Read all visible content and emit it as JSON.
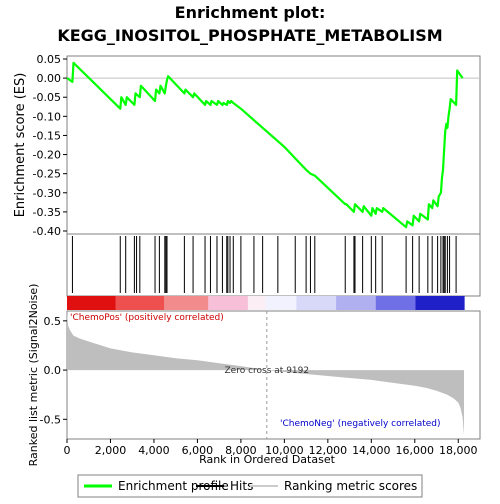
{
  "chart_data": {
    "type": "line",
    "title_line1": "Enrichment plot:",
    "title_line2": "KEGG_INOSITOL_PHOSPHATE_METABOLISM",
    "es_panel": {
      "ylabel": "Enrichment score (ES)",
      "ylim": [
        -0.4,
        0.05
      ],
      "yticks": [
        "0.05",
        "0.00",
        "-0.05",
        "-0.10",
        "-0.15",
        "-0.20",
        "-0.25",
        "-0.30",
        "-0.35",
        "-0.40"
      ],
      "ytick_values": [
        0.05,
        0.0,
        -0.05,
        -0.1,
        -0.15,
        -0.2,
        -0.25,
        -0.3,
        -0.35,
        -0.4
      ],
      "line_color": "#00ff00",
      "series": [
        {
          "name": "Enrichment profile",
          "x": [
            0,
            250,
            300,
            2450,
            2500,
            2700,
            2750,
            3100,
            3150,
            3350,
            3400,
            4050,
            4100,
            4250,
            4300,
            4500,
            4550,
            4600,
            4650,
            5400,
            5450,
            5800,
            5850,
            6350,
            6400,
            6600,
            6650,
            6900,
            6950,
            7150,
            7200,
            7350,
            7400,
            7500,
            7550,
            7650,
            8000,
            9000,
            10000,
            10500,
            11000,
            11200,
            11400,
            12800,
            12850,
            13200,
            13250,
            13600,
            13650,
            14000,
            14050,
            14200,
            14250,
            14500,
            14550,
            15600,
            15650,
            15900,
            15950,
            16200,
            16250,
            16600,
            16650,
            16800,
            16850,
            17050,
            17100,
            17200,
            17250,
            17300,
            17350,
            17400,
            17450,
            17500,
            17550,
            17600,
            17650,
            17900,
            17950,
            18200
          ],
          "y": [
            0.0,
            -0.01,
            0.04,
            -0.08,
            -0.05,
            -0.07,
            -0.05,
            -0.07,
            -0.04,
            -0.05,
            -0.02,
            -0.06,
            -0.03,
            -0.04,
            -0.02,
            -0.04,
            -0.02,
            -0.005,
            0.005,
            -0.04,
            -0.03,
            -0.05,
            -0.04,
            -0.07,
            -0.06,
            -0.07,
            -0.06,
            -0.07,
            -0.06,
            -0.07,
            -0.065,
            -0.07,
            -0.06,
            -0.065,
            -0.06,
            -0.065,
            -0.08,
            -0.13,
            -0.18,
            -0.21,
            -0.24,
            -0.25,
            -0.255,
            -0.33,
            -0.33,
            -0.35,
            -0.33,
            -0.35,
            -0.335,
            -0.36,
            -0.34,
            -0.355,
            -0.34,
            -0.35,
            -0.34,
            -0.39,
            -0.375,
            -0.385,
            -0.36,
            -0.375,
            -0.355,
            -0.37,
            -0.33,
            -0.34,
            -0.32,
            -0.335,
            -0.31,
            -0.3,
            -0.26,
            -0.24,
            -0.19,
            -0.14,
            -0.12,
            -0.13,
            -0.1,
            -0.08,
            -0.055,
            -0.07,
            0.02,
            0.0
          ]
        }
      ]
    },
    "hits": [
      250,
      2450,
      2700,
      3100,
      3200,
      3350,
      4050,
      4250,
      4500,
      4550,
      4600,
      5400,
      5800,
      6350,
      6600,
      6900,
      7150,
      7350,
      7400,
      7500,
      7650,
      8000,
      8600,
      9000,
      9700,
      10500,
      11000,
      11200,
      11400,
      12800,
      13200,
      13250,
      13600,
      14000,
      14200,
      14500,
      15600,
      15900,
      16200,
      16600,
      16800,
      17050,
      17200,
      17300,
      17350,
      17400,
      17500,
      17600,
      17900
    ],
    "metric_panel": {
      "ylabel": "Ranked list metric (Signal2Noise)",
      "xlabel": "Rank in Ordered Dataset",
      "ylim": [
        -0.7,
        0.6
      ],
      "yticks": [
        "0.5",
        "0.0",
        "-0.5"
      ],
      "ytick_values": [
        0.5,
        0.0,
        -0.5
      ],
      "xticks": [
        "0",
        "2,000",
        "4,000",
        "6,000",
        "8,000",
        "10,000",
        "12,000",
        "14,000",
        "16,000",
        "18,000"
      ],
      "xtick_values": [
        0,
        2000,
        4000,
        6000,
        8000,
        10000,
        12000,
        14000,
        16000,
        18000
      ],
      "xlim": [
        0,
        19000
      ],
      "n_genes": 18265,
      "zero_cross": 9192,
      "zero_cross_label": "Zero cross at 9192",
      "pos_label": "'ChemoPos' (positively correlated)",
      "neg_label": "'ChemoNeg' (negatively correlated)",
      "fill_color": "#bebebe",
      "metric_curve": {
        "x": [
          0,
          50,
          150,
          300,
          600,
          1000,
          2000,
          3000,
          4000,
          5000,
          6000,
          7000,
          8000,
          9192,
          10000,
          11000,
          12000,
          13000,
          14000,
          15000,
          16000,
          16500,
          17000,
          17500,
          17800,
          18000,
          18100,
          18200,
          18265
        ],
        "y": [
          0.6,
          0.45,
          0.4,
          0.35,
          0.32,
          0.29,
          0.22,
          0.18,
          0.15,
          0.12,
          0.1,
          0.07,
          0.04,
          0.0,
          -0.02,
          -0.04,
          -0.06,
          -0.08,
          -0.1,
          -0.13,
          -0.16,
          -0.18,
          -0.21,
          -0.25,
          -0.29,
          -0.33,
          -0.38,
          -0.48,
          -0.66
        ]
      }
    },
    "legend": {
      "items": [
        {
          "label": "Enrichment profile",
          "color": "#00ff00"
        },
        {
          "label": "Hits",
          "color": "#000000"
        },
        {
          "label": "Ranking metric scores",
          "color": "#cccccc"
        }
      ]
    }
  }
}
